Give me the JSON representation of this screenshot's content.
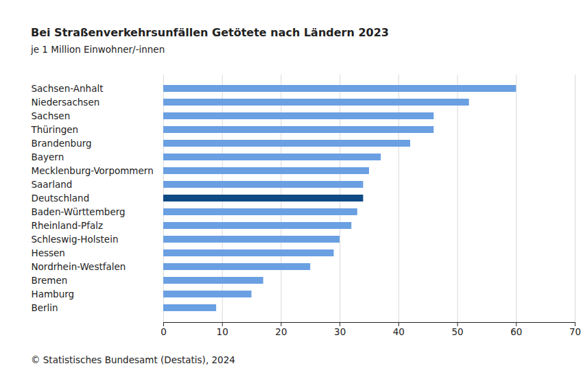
{
  "chart_data": {
    "type": "bar",
    "orientation": "horizontal",
    "title": "Bei Straßenverkehrsunfällen Getötete nach Ländern 2023",
    "subtitle": "je 1 Million Einwohner/-innen",
    "caption": "© Statistisches Bundesamt (Destatis), 2024",
    "categories": [
      "Sachsen-Anhalt",
      "Niedersachsen",
      "Sachsen",
      "Thüringen",
      "Brandenburg",
      "Bayern",
      "Mecklenburg-Vorpommern",
      "Saarland",
      "Deutschland",
      "Baden-Württemberg",
      "Rheinland-Pfalz",
      "Schleswig-Holstein",
      "Hessen",
      "Nordrhein-Westfalen",
      "Bremen",
      "Hamburg",
      "Berlin"
    ],
    "values": [
      60,
      52,
      46,
      46,
      42,
      37,
      35,
      34,
      34,
      33,
      32,
      30,
      29,
      25,
      17,
      15,
      9
    ],
    "colors": [
      "#6a9fe2",
      "#6a9fe2",
      "#6a9fe2",
      "#6a9fe2",
      "#6a9fe2",
      "#6a9fe2",
      "#6a9fe2",
      "#6a9fe2",
      "#0e4a84",
      "#6a9fe2",
      "#6a9fe2",
      "#6a9fe2",
      "#6a9fe2",
      "#6a9fe2",
      "#6a9fe2",
      "#6a9fe2",
      "#6a9fe2"
    ],
    "xlim": [
      0,
      70
    ],
    "xticks": [
      0,
      10,
      20,
      30,
      40,
      50,
      60,
      70
    ],
    "grid": true
  }
}
